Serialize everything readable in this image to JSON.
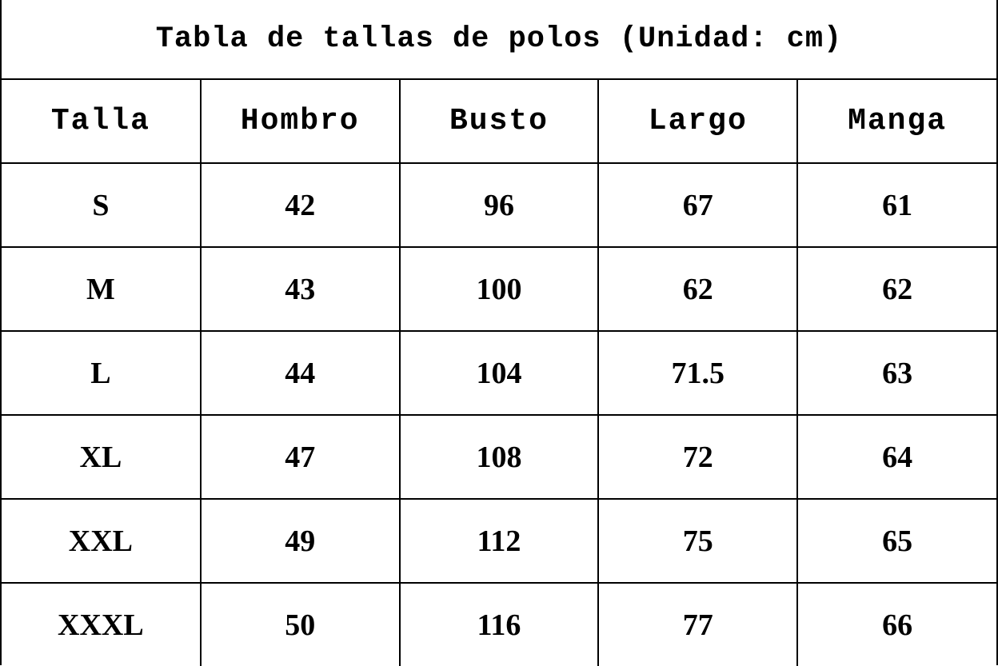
{
  "title": "Tabla de tallas de polos (Unidad: cm)",
  "columns": [
    "Talla",
    "Hombro",
    "Busto",
    "Largo",
    "Manga"
  ],
  "rows": [
    [
      "S",
      "42",
      "96",
      "67",
      "61"
    ],
    [
      "M",
      "43",
      "100",
      "62",
      "62"
    ],
    [
      "L",
      "44",
      "104",
      "71.5",
      "63"
    ],
    [
      "XL",
      "47",
      "108",
      "72",
      "64"
    ],
    [
      "XXL",
      "49",
      "112",
      "75",
      "65"
    ],
    [
      "XXXL",
      "50",
      "116",
      "77",
      "66"
    ]
  ]
}
